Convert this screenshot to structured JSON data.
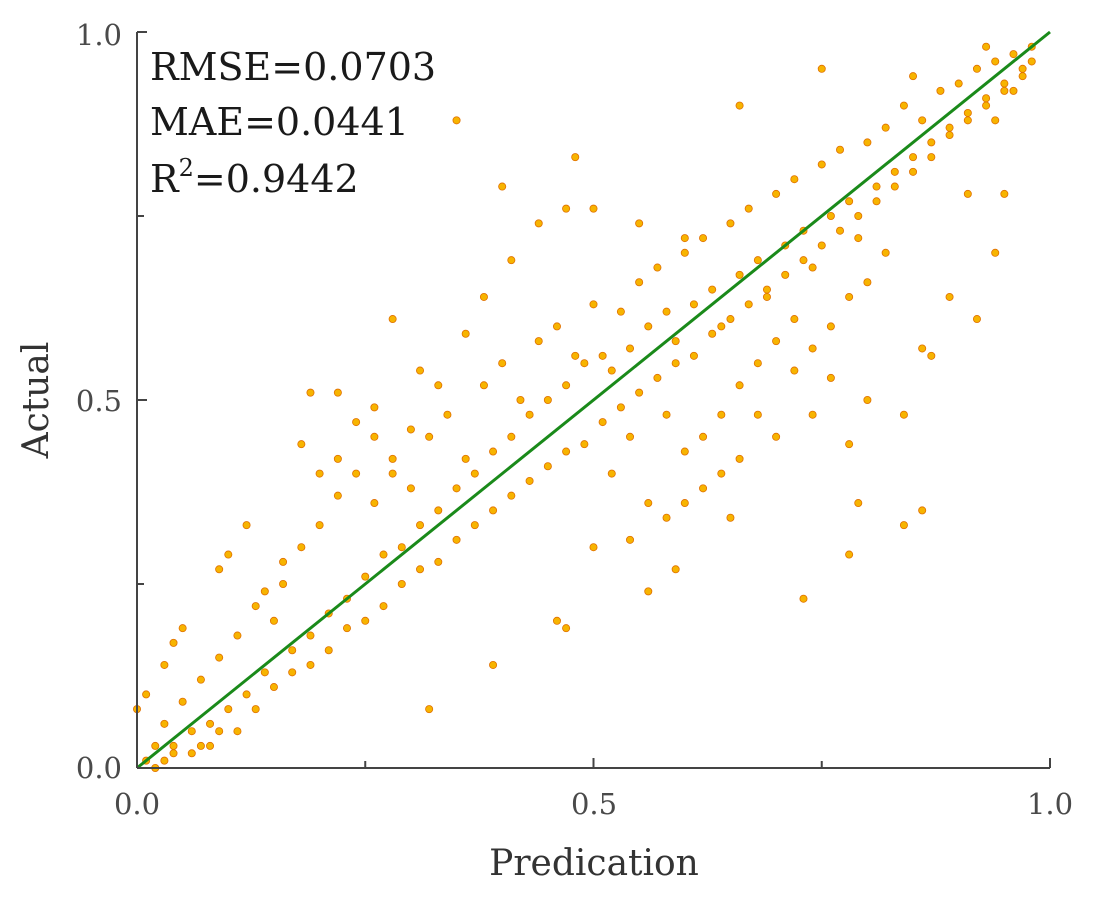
{
  "chart_data": {
    "type": "scatter",
    "xlabel": "Predication",
    "ylabel": "Actual",
    "xlim": [
      0.0,
      1.0
    ],
    "ylim": [
      0.0,
      1.0
    ],
    "x_ticks": [
      "0.0",
      "0.5",
      "1.0"
    ],
    "y_ticks": [
      "0.0",
      "0.5",
      "1.0"
    ],
    "grid": false,
    "legend": "none",
    "annotations": {
      "rmse": "RMSE=0.0703",
      "mae": "MAE=0.0441",
      "r2_prefix": "R",
      "r2_exponent": "2",
      "r2_value": "=0.9442"
    },
    "fit_line": {
      "x": [
        0.0,
        1.0
      ],
      "y": [
        0.0,
        1.0
      ],
      "color": "#1a8a1a"
    },
    "point_color": "#f7b400",
    "point_edge_color": "#e07000",
    "series": [
      {
        "points": [
          [
            0.02,
            0.03
          ],
          [
            0.03,
            0.06
          ],
          [
            0.04,
            0.02
          ],
          [
            0.05,
            0.09
          ],
          [
            0.06,
            0.05
          ],
          [
            0.07,
            0.12
          ],
          [
            0.08,
            0.06
          ],
          [
            0.09,
            0.15
          ],
          [
            0.1,
            0.08
          ],
          [
            0.11,
            0.18
          ],
          [
            0.12,
            0.1
          ],
          [
            0.13,
            0.22
          ],
          [
            0.14,
            0.13
          ],
          [
            0.15,
            0.2
          ],
          [
            0.16,
            0.25
          ],
          [
            0.17,
            0.16
          ],
          [
            0.18,
            0.3
          ],
          [
            0.19,
            0.18
          ],
          [
            0.2,
            0.33
          ],
          [
            0.21,
            0.21
          ],
          [
            0.22,
            0.37
          ],
          [
            0.23,
            0.23
          ],
          [
            0.24,
            0.4
          ],
          [
            0.25,
            0.26
          ],
          [
            0.26,
            0.36
          ],
          [
            0.27,
            0.29
          ],
          [
            0.28,
            0.42
          ],
          [
            0.29,
            0.3
          ],
          [
            0.3,
            0.38
          ],
          [
            0.31,
            0.33
          ],
          [
            0.32,
            0.45
          ],
          [
            0.33,
            0.35
          ],
          [
            0.34,
            0.48
          ],
          [
            0.35,
            0.38
          ],
          [
            0.36,
            0.42
          ],
          [
            0.37,
            0.4
          ],
          [
            0.38,
            0.52
          ],
          [
            0.39,
            0.43
          ],
          [
            0.4,
            0.55
          ],
          [
            0.41,
            0.45
          ],
          [
            0.42,
            0.5
          ],
          [
            0.43,
            0.48
          ],
          [
            0.44,
            0.58
          ],
          [
            0.45,
            0.5
          ],
          [
            0.46,
            0.6
          ],
          [
            0.47,
            0.52
          ],
          [
            0.48,
            0.56
          ],
          [
            0.49,
            0.55
          ],
          [
            0.5,
            0.63
          ],
          [
            0.51,
            0.56
          ],
          [
            0.52,
            0.54
          ],
          [
            0.53,
            0.62
          ],
          [
            0.54,
            0.57
          ],
          [
            0.55,
            0.66
          ],
          [
            0.56,
            0.6
          ],
          [
            0.57,
            0.68
          ],
          [
            0.58,
            0.62
          ],
          [
            0.59,
            0.58
          ],
          [
            0.6,
            0.7
          ],
          [
            0.61,
            0.63
          ],
          [
            0.62,
            0.72
          ],
          [
            0.63,
            0.65
          ],
          [
            0.64,
            0.6
          ],
          [
            0.65,
            0.74
          ],
          [
            0.66,
            0.67
          ],
          [
            0.67,
            0.76
          ],
          [
            0.68,
            0.69
          ],
          [
            0.69,
            0.64
          ],
          [
            0.7,
            0.78
          ],
          [
            0.71,
            0.71
          ],
          [
            0.72,
            0.8
          ],
          [
            0.73,
            0.73
          ],
          [
            0.74,
            0.68
          ],
          [
            0.75,
            0.82
          ],
          [
            0.76,
            0.75
          ],
          [
            0.77,
            0.84
          ],
          [
            0.78,
            0.77
          ],
          [
            0.79,
            0.72
          ],
          [
            0.8,
            0.85
          ],
          [
            0.81,
            0.79
          ],
          [
            0.82,
            0.87
          ],
          [
            0.83,
            0.81
          ],
          [
            0.84,
            0.9
          ],
          [
            0.85,
            0.83
          ],
          [
            0.86,
            0.88
          ],
          [
            0.87,
            0.85
          ],
          [
            0.88,
            0.92
          ],
          [
            0.89,
            0.87
          ],
          [
            0.9,
            0.93
          ],
          [
            0.91,
            0.89
          ],
          [
            0.92,
            0.95
          ],
          [
            0.93,
            0.91
          ],
          [
            0.94,
            0.96
          ],
          [
            0.95,
            0.93
          ],
          [
            0.96,
            0.97
          ],
          [
            0.97,
            0.95
          ],
          [
            0.98,
            0.98
          ],
          [
            0.96,
            0.92
          ],
          [
            0.94,
            0.88
          ],
          [
            0.93,
            0.98
          ],
          [
            0.35,
            0.88
          ],
          [
            0.48,
            0.83
          ],
          [
            0.4,
            0.79
          ],
          [
            0.66,
            0.9
          ],
          [
            0.75,
            0.95
          ],
          [
            0.85,
            0.94
          ],
          [
            0.28,
            0.61
          ],
          [
            0.38,
            0.64
          ],
          [
            0.41,
            0.69
          ],
          [
            0.44,
            0.74
          ],
          [
            0.47,
            0.76
          ],
          [
            0.5,
            0.76
          ],
          [
            0.55,
            0.74
          ],
          [
            0.6,
            0.72
          ],
          [
            0.56,
            0.24
          ],
          [
            0.59,
            0.27
          ],
          [
            0.65,
            0.34
          ],
          [
            0.73,
            0.23
          ],
          [
            0.78,
            0.29
          ],
          [
            0.79,
            0.36
          ],
          [
            0.84,
            0.33
          ],
          [
            0.86,
            0.35
          ],
          [
            0.84,
            0.48
          ],
          [
            0.86,
            0.57
          ],
          [
            0.87,
            0.56
          ],
          [
            0.89,
            0.64
          ],
          [
            0.92,
            0.61
          ],
          [
            0.94,
            0.7
          ],
          [
            0.91,
            0.78
          ],
          [
            0.95,
            0.78
          ],
          [
            0.39,
            0.14
          ],
          [
            0.32,
            0.08
          ],
          [
            0.46,
            0.2
          ],
          [
            0.47,
            0.19
          ],
          [
            0.1,
            0.29
          ],
          [
            0.09,
            0.27
          ],
          [
            0.12,
            0.33
          ],
          [
            0.19,
            0.51
          ],
          [
            0.22,
            0.51
          ],
          [
            0.18,
            0.44
          ],
          [
            0.24,
            0.47
          ],
          [
            0.26,
            0.49
          ],
          [
            0.31,
            0.54
          ],
          [
            0.33,
            0.52
          ],
          [
            0.36,
            0.59
          ],
          [
            0.04,
            0.17
          ],
          [
            0.05,
            0.19
          ],
          [
            0.03,
            0.14
          ],
          [
            0.01,
            0.1
          ],
          [
            0.0,
            0.08
          ],
          [
            0.01,
            0.01
          ],
          [
            0.02,
            0.0
          ],
          [
            0.03,
            0.01
          ],
          [
            0.04,
            0.03
          ],
          [
            0.06,
            0.02
          ],
          [
            0.07,
            0.03
          ],
          [
            0.08,
            0.03
          ],
          [
            0.09,
            0.05
          ],
          [
            0.11,
            0.05
          ],
          [
            0.13,
            0.08
          ],
          [
            0.15,
            0.11
          ],
          [
            0.17,
            0.13
          ],
          [
            0.19,
            0.14
          ],
          [
            0.21,
            0.16
          ],
          [
            0.23,
            0.19
          ],
          [
            0.25,
            0.2
          ],
          [
            0.27,
            0.22
          ],
          [
            0.29,
            0.25
          ],
          [
            0.31,
            0.27
          ],
          [
            0.33,
            0.28
          ],
          [
            0.35,
            0.31
          ],
          [
            0.37,
            0.33
          ],
          [
            0.39,
            0.35
          ],
          [
            0.41,
            0.37
          ],
          [
            0.43,
            0.39
          ],
          [
            0.45,
            0.41
          ],
          [
            0.47,
            0.43
          ],
          [
            0.49,
            0.44
          ],
          [
            0.51,
            0.47
          ],
          [
            0.53,
            0.49
          ],
          [
            0.55,
            0.51
          ],
          [
            0.57,
            0.53
          ],
          [
            0.59,
            0.55
          ],
          [
            0.61,
            0.56
          ],
          [
            0.63,
            0.59
          ],
          [
            0.65,
            0.61
          ],
          [
            0.67,
            0.63
          ],
          [
            0.69,
            0.65
          ],
          [
            0.71,
            0.67
          ],
          [
            0.73,
            0.69
          ],
          [
            0.75,
            0.71
          ],
          [
            0.77,
            0.73
          ],
          [
            0.79,
            0.75
          ],
          [
            0.81,
            0.77
          ],
          [
            0.83,
            0.79
          ],
          [
            0.85,
            0.81
          ],
          [
            0.87,
            0.83
          ],
          [
            0.89,
            0.86
          ],
          [
            0.91,
            0.88
          ],
          [
            0.93,
            0.9
          ],
          [
            0.95,
            0.92
          ],
          [
            0.97,
            0.94
          ],
          [
            0.98,
            0.96
          ],
          [
            0.14,
            0.24
          ],
          [
            0.16,
            0.28
          ],
          [
            0.2,
            0.4
          ],
          [
            0.22,
            0.42
          ],
          [
            0.26,
            0.45
          ],
          [
            0.28,
            0.4
          ],
          [
            0.3,
            0.46
          ],
          [
            0.52,
            0.4
          ],
          [
            0.54,
            0.45
          ],
          [
            0.58,
            0.48
          ],
          [
            0.6,
            0.43
          ],
          [
            0.62,
            0.45
          ],
          [
            0.64,
            0.48
          ],
          [
            0.66,
            0.52
          ],
          [
            0.68,
            0.55
          ],
          [
            0.7,
            0.58
          ],
          [
            0.72,
            0.54
          ],
          [
            0.74,
            0.57
          ],
          [
            0.76,
            0.6
          ],
          [
            0.78,
            0.64
          ],
          [
            0.8,
            0.66
          ],
          [
            0.82,
            0.7
          ],
          [
            0.62,
            0.38
          ],
          [
            0.66,
            0.42
          ],
          [
            0.7,
            0.45
          ],
          [
            0.74,
            0.48
          ],
          [
            0.78,
            0.44
          ],
          [
            0.8,
            0.5
          ],
          [
            0.76,
            0.53
          ],
          [
            0.72,
            0.61
          ],
          [
            0.68,
            0.48
          ],
          [
            0.64,
            0.4
          ],
          [
            0.6,
            0.36
          ],
          [
            0.58,
            0.34
          ],
          [
            0.56,
            0.36
          ],
          [
            0.54,
            0.31
          ],
          [
            0.5,
            0.3
          ]
        ]
      }
    ]
  }
}
